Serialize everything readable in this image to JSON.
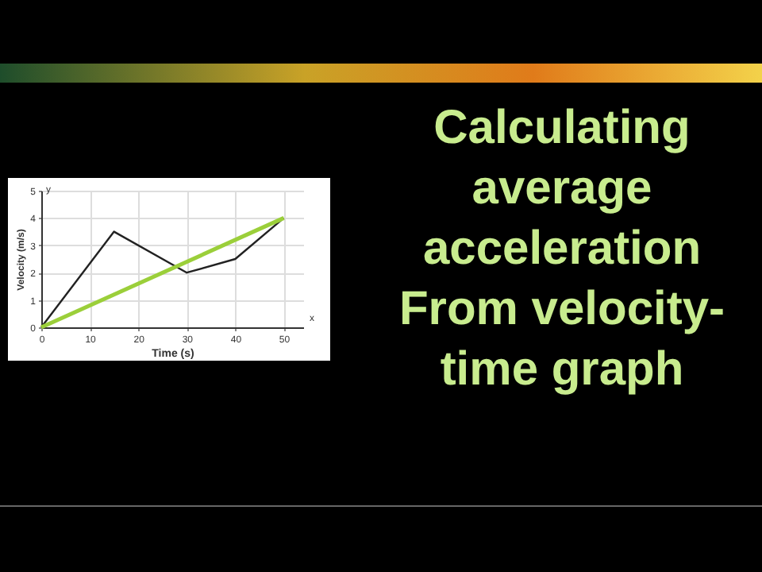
{
  "chart_data": {
    "type": "line",
    "title": "Calculating average acceleration From velocity-time graph",
    "xlabel": "Time (s)",
    "ylabel": "Velocity (m/s)",
    "annotations": [
      "x",
      "y"
    ],
    "series": [
      {
        "x": [
          0,
          15,
          30,
          40,
          50
        ],
        "values": [
          0,
          3.5,
          2,
          2.5,
          4
        ],
        "color": "#222222"
      },
      {
        "x": [
          0,
          50
        ],
        "values": [
          0,
          4
        ],
        "color": "#9bcf3a"
      }
    ],
    "xlim": [
      0,
      54
    ],
    "xticks": [
      0,
      10,
      20,
      30,
      40,
      50
    ],
    "ylim": [
      0,
      5
    ],
    "yticks": [
      0,
      1,
      2,
      3,
      4,
      5
    ],
    "grid": true,
    "marker": "none",
    "line_style": "solid"
  }
}
